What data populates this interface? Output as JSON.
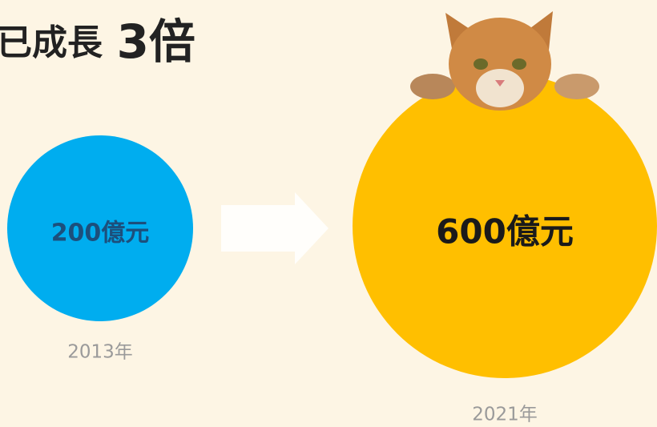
{
  "title": {
    "prefix": "已成長",
    "highlight": "3倍"
  },
  "items": [
    {
      "amount": "200億元",
      "year": "2013年"
    },
    {
      "amount": "600億元",
      "year": "2021年"
    }
  ]
}
